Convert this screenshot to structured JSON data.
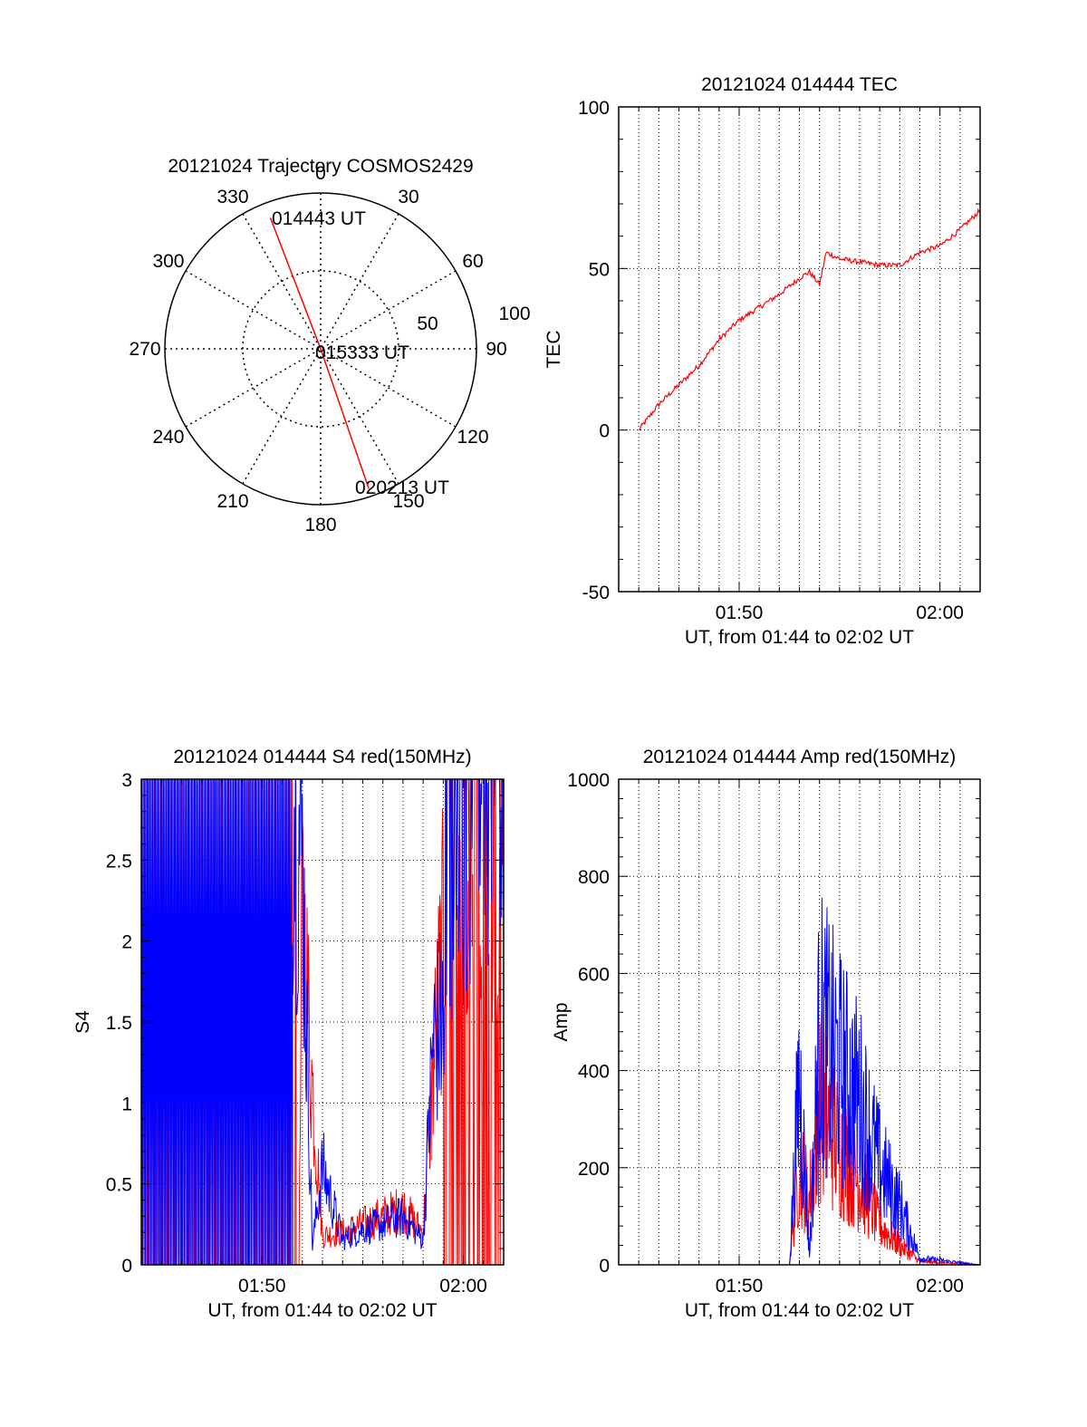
{
  "chart_data": [
    {
      "type": "polar",
      "title": "20121024 Trajectory COSMOS2429",
      "azimuth_labels": [
        "0",
        "30",
        "60",
        "90",
        "120",
        "150",
        "180",
        "210",
        "240",
        "270",
        "300",
        "330"
      ],
      "radial_labels": [
        "50",
        "100"
      ],
      "trajectory": {
        "color": "#ff0000",
        "points": [
          {
            "az": 339,
            "r": 90,
            "label": "014443 UT"
          },
          {
            "az": 0,
            "r": 0,
            "label": "015333 UT"
          },
          {
            "az": 161,
            "r": 95,
            "label": "020213 UT"
          }
        ]
      }
    },
    {
      "type": "line",
      "title": "20121024 014444 TEC",
      "xlabel": "UT, from 01:44 to 02:02 UT",
      "ylabel": "TEC",
      "xlim": [
        "01:44",
        "02:02"
      ],
      "ylim": [
        -50,
        100
      ],
      "xticks": [
        "01:50",
        "02:00"
      ],
      "yticks": [
        -50,
        0,
        50,
        100
      ],
      "grid": true,
      "series": [
        {
          "color": "#ff0000",
          "x": [
            "01:45",
            "01:46",
            "01:47",
            "01:48",
            "01:49",
            "01:50",
            "01:51",
            "01:52",
            "01:53",
            "01:53:30",
            "01:54",
            "01:54:20",
            "01:55",
            "01:56",
            "01:57",
            "01:58",
            "01:59",
            "02:00",
            "02:01",
            "02:02"
          ],
          "y": [
            0,
            8,
            14,
            20,
            28,
            34,
            38,
            42,
            47,
            49,
            45,
            55,
            53,
            52,
            51,
            51,
            55,
            57,
            62,
            68
          ]
        }
      ]
    },
    {
      "type": "line",
      "title": "20121024 014444 S4 red(150MHz)",
      "xlabel": "UT, from 01:44 to 02:02 UT",
      "ylabel": "S4",
      "xlim": [
        "01:44",
        "02:02"
      ],
      "ylim": [
        0,
        3
      ],
      "xticks": [
        "01:50",
        "02:00"
      ],
      "yticks": [
        0,
        0.5,
        1,
        1.5,
        2,
        2.5,
        3
      ],
      "grid": true,
      "series": [
        {
          "color": "#ff0000",
          "x": [
            "01:44",
            "01:51:50",
            "01:52",
            "01:52:30",
            "01:53",
            "01:54",
            "01:55",
            "01:56",
            "01:57",
            "01:58",
            "01:58:30",
            "01:59",
            "02:00",
            "02:01",
            "02:02"
          ],
          "y": [
            0,
            0,
            2.2,
            1.1,
            0.18,
            0.2,
            0.25,
            0.3,
            0.35,
            0.2,
            1.2,
            2.0,
            2.6,
            1.8,
            2.7
          ]
        },
        {
          "color": "#0000ff",
          "x": [
            "01:44",
            "01:51:30",
            "01:52",
            "01:52:30",
            "01:53",
            "01:54",
            "01:55",
            "01:56",
            "01:57",
            "01:58",
            "01:58:30",
            "01:59",
            "02:00",
            "02:01",
            "02:02"
          ],
          "y": [
            3,
            3,
            2.5,
            0.12,
            0.6,
            0.15,
            0.22,
            0.25,
            0.3,
            0.15,
            1.4,
            1.5,
            2.6,
            2.9,
            2.8
          ]
        }
      ]
    },
    {
      "type": "line",
      "title": "20121024 014444 Amp red(150MHz)",
      "xlabel": "UT, from 01:44 to 02:02 UT",
      "ylabel": "Amp",
      "xlim": [
        "01:44",
        "02:02"
      ],
      "ylim": [
        0,
        1000
      ],
      "xticks": [
        "01:50",
        "02:00"
      ],
      "yticks": [
        0,
        200,
        400,
        600,
        800,
        1000
      ],
      "grid": true,
      "series": [
        {
          "color": "#ff0000",
          "x": [
            "01:45",
            "01:52:30",
            "01:53",
            "01:53:30",
            "01:54",
            "01:55",
            "01:56",
            "01:57",
            "01:58",
            "01:59",
            "02:02"
          ],
          "y": [
            0,
            0,
            300,
            200,
            500,
            350,
            250,
            120,
            60,
            10,
            0
          ]
        },
        {
          "color": "#0000ff",
          "x": [
            "01:45",
            "01:52:30",
            "01:53",
            "01:53:30",
            "01:54",
            "01:55",
            "01:56",
            "01:57",
            "01:58",
            "01:59",
            "02:02"
          ],
          "y": [
            0,
            0,
            580,
            30,
            720,
            600,
            500,
            300,
            180,
            20,
            0
          ]
        }
      ]
    }
  ]
}
